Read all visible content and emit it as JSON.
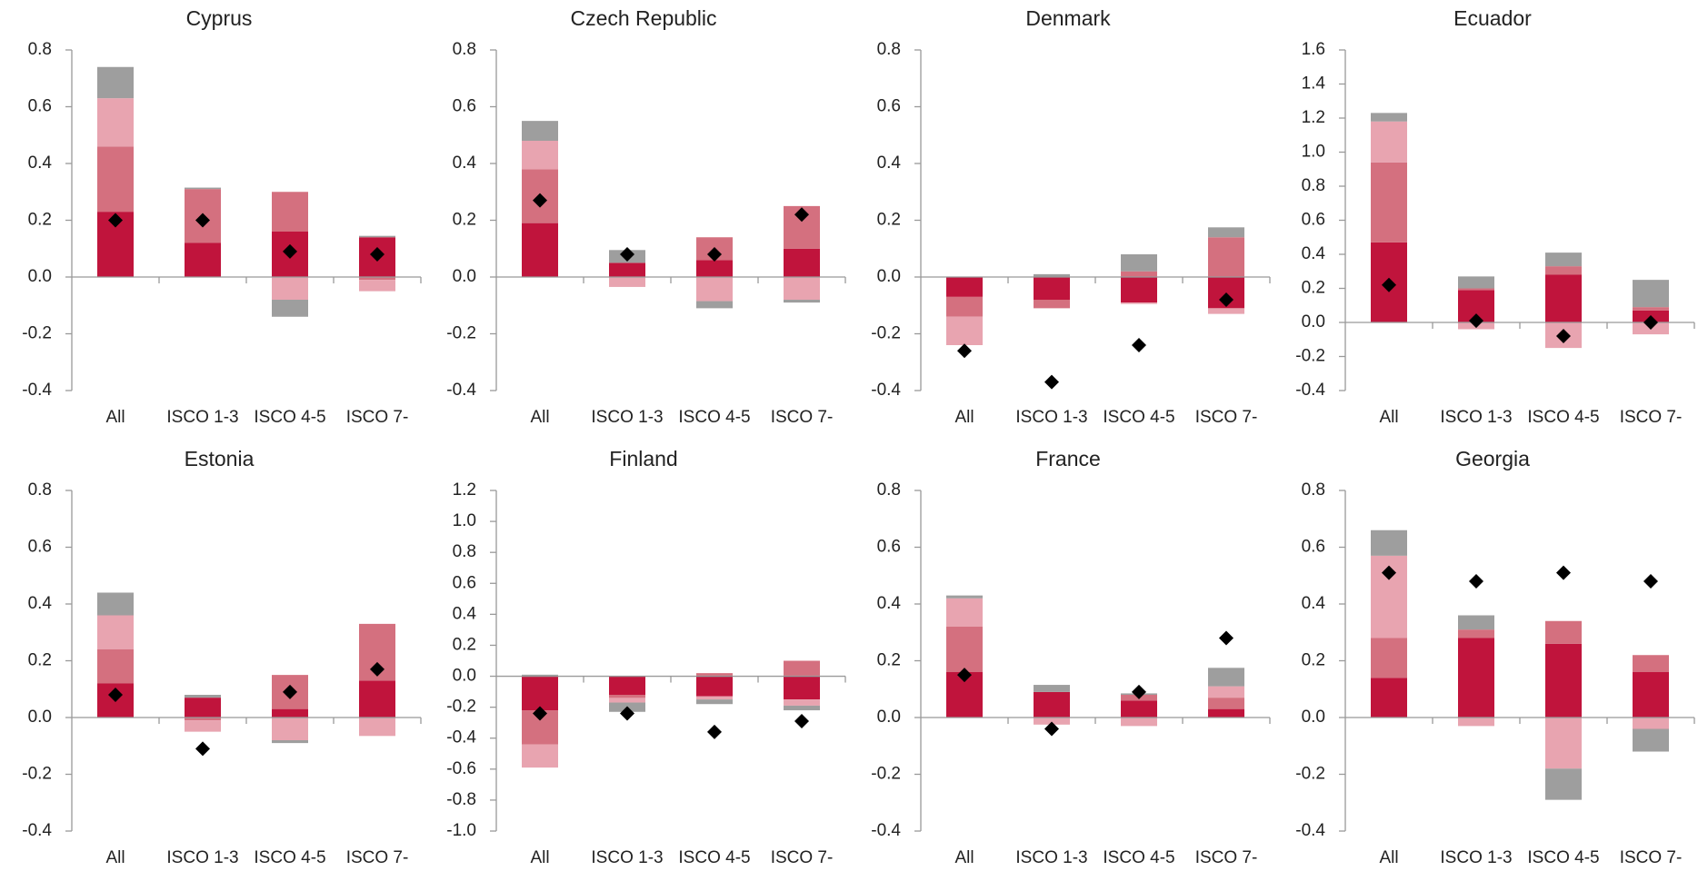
{
  "chart_data": [
    {
      "type": "bar",
      "title": "Cyprus",
      "categories": [
        "All",
        "ISCO 1-3",
        "ISCO 4-5",
        "ISCO 7-"
      ],
      "ylim": [
        -0.4,
        0.8
      ],
      "yticks": [
        -0.4,
        -0.2,
        {
          "value": 0,
          "label": "0.0"
        },
        0.2,
        0.4,
        0.6,
        0.8
      ],
      "series": [
        {
          "color": "#c0143c",
          "values": [
            0.23,
            0.12,
            0.16,
            0.14
          ]
        },
        {
          "color": "#d4707f",
          "values": [
            0.23,
            0.19,
            0.14,
            -0.01
          ]
        },
        {
          "color": "#e8a4b0",
          "values": [
            0.17,
            0,
            -0.08,
            -0.04
          ]
        },
        {
          "color": "#9e9e9e",
          "values": [
            0.11,
            0.005,
            -0.06,
            0.005
          ]
        }
      ],
      "markers": {
        "color": "#000000",
        "values": [
          0.2,
          0.2,
          0.09,
          0.08
        ]
      }
    },
    {
      "type": "bar",
      "title": "Czech Republic",
      "categories": [
        "All",
        "ISCO 1-3",
        "ISCO 4-5",
        "ISCO 7-"
      ],
      "ylim": [
        -0.4,
        0.8
      ],
      "yticks": [
        -0.4,
        -0.2,
        {
          "value": 0,
          "label": "0.0"
        },
        0.2,
        0.4,
        0.6,
        0.8
      ],
      "series": [
        {
          "color": "#c0143c",
          "values": [
            0.19,
            0.05,
            0.06,
            0.1
          ]
        },
        {
          "color": "#d4707f",
          "values": [
            0.19,
            0,
            0.08,
            0.15
          ]
        },
        {
          "color": "#e8a4b0",
          "values": [
            0.1,
            -0.035,
            -0.085,
            -0.08
          ]
        },
        {
          "color": "#9e9e9e",
          "values": [
            0.07,
            0.045,
            -0.025,
            -0.01
          ]
        }
      ],
      "markers": {
        "color": "#000000",
        "values": [
          0.27,
          0.08,
          0.08,
          0.22
        ]
      }
    },
    {
      "type": "bar",
      "title": "Denmark",
      "categories": [
        "All",
        "ISCO 1-3",
        "ISCO 4-5",
        "ISCO 7-"
      ],
      "ylim": [
        -0.4,
        0.8
      ],
      "yticks": [
        -0.4,
        -0.2,
        {
          "value": 0,
          "label": "0.0"
        },
        0.2,
        0.4,
        0.6,
        0.8
      ],
      "series": [
        {
          "color": "#c0143c",
          "values": [
            -0.07,
            -0.08,
            -0.09,
            -0.11
          ]
        },
        {
          "color": "#d4707f",
          "values": [
            -0.07,
            -0.03,
            0.02,
            0.14
          ]
        },
        {
          "color": "#e8a4b0",
          "values": [
            -0.1,
            0,
            -0.005,
            -0.02
          ]
        },
        {
          "color": "#9e9e9e",
          "values": [
            0,
            0.01,
            0.06,
            0.035
          ]
        }
      ],
      "markers": {
        "color": "#000000",
        "values": [
          -0.26,
          -0.37,
          -0.24,
          -0.08
        ]
      }
    },
    {
      "type": "bar",
      "title": "Ecuador",
      "categories": [
        "All",
        "ISCO 1-3",
        "ISCO 4-5",
        "ISCO 7-"
      ],
      "ylim": [
        -0.4,
        1.6
      ],
      "yticks": [
        -0.4,
        -0.2,
        {
          "value": 0,
          "label": "0.0"
        },
        0.2,
        0.4,
        0.6,
        0.8,
        {
          "value": 1,
          "label": "1.0"
        },
        1.2,
        1.4,
        1.6
      ],
      "series": [
        {
          "color": "#c0143c",
          "values": [
            0.47,
            0.19,
            0.28,
            0.07
          ]
        },
        {
          "color": "#d4707f",
          "values": [
            0.47,
            0.01,
            0.05,
            0.02
          ]
        },
        {
          "color": "#e8a4b0",
          "values": [
            0.24,
            -0.04,
            -0.15,
            -0.07
          ]
        },
        {
          "color": "#9e9e9e",
          "values": [
            0.05,
            0.07,
            0.08,
            0.16
          ]
        }
      ],
      "markers": {
        "color": "#000000",
        "values": [
          0.22,
          0.01,
          -0.08,
          0
        ]
      }
    },
    {
      "type": "bar",
      "title": "Estonia",
      "categories": [
        "All",
        "ISCO 1-3",
        "ISCO 4-5",
        "ISCO 7-"
      ],
      "ylim": [
        -0.4,
        0.8
      ],
      "yticks": [
        -0.4,
        -0.2,
        {
          "value": 0,
          "label": "0.0"
        },
        0.2,
        0.4,
        0.6,
        0.8
      ],
      "series": [
        {
          "color": "#c0143c",
          "values": [
            0.12,
            0.07,
            0.03,
            0.13
          ]
        },
        {
          "color": "#d4707f",
          "values": [
            0.12,
            -0.01,
            0.12,
            0.2
          ]
        },
        {
          "color": "#e8a4b0",
          "values": [
            0.12,
            -0.04,
            -0.08,
            -0.065
          ]
        },
        {
          "color": "#9e9e9e",
          "values": [
            0.08,
            0.01,
            -0.01,
            0
          ]
        }
      ],
      "markers": {
        "color": "#000000",
        "values": [
          0.08,
          -0.11,
          0.09,
          0.17
        ]
      }
    },
    {
      "type": "bar",
      "title": "Finland",
      "categories": [
        "All",
        "ISCO 1-3",
        "ISCO 4-5",
        "ISCO 7-"
      ],
      "ylim": [
        -1,
        1.2
      ],
      "yticks": [
        {
          "value": -1,
          "label": "-1.0"
        },
        -0.8,
        -0.6,
        -0.4,
        -0.2,
        {
          "value": 0,
          "label": "0.0"
        },
        0.2,
        0.4,
        0.6,
        0.8,
        {
          "value": 1,
          "label": "1.0"
        },
        1.2
      ],
      "series": [
        {
          "color": "#c0143c",
          "values": [
            -0.22,
            -0.12,
            -0.13,
            -0.15
          ]
        },
        {
          "color": "#d4707f",
          "values": [
            -0.22,
            -0.02,
            0.02,
            0.1
          ]
        },
        {
          "color": "#e8a4b0",
          "values": [
            -0.15,
            -0.03,
            -0.02,
            -0.04
          ]
        },
        {
          "color": "#9e9e9e",
          "values": [
            0.01,
            -0.06,
            -0.03,
            -0.03
          ]
        }
      ],
      "markers": {
        "color": "#000000",
        "values": [
          -0.24,
          -0.24,
          -0.36,
          -0.29
        ]
      }
    },
    {
      "type": "bar",
      "title": "France",
      "categories": [
        "All",
        "ISCO 1-3",
        "ISCO 4-5",
        "ISCO 7-"
      ],
      "ylim": [
        -0.4,
        0.8
      ],
      "yticks": [
        -0.4,
        -0.2,
        {
          "value": 0,
          "label": "0.0"
        },
        0.2,
        0.4,
        0.6,
        0.8
      ],
      "series": [
        {
          "color": "#c0143c",
          "values": [
            0.16,
            0.09,
            0.06,
            0.03
          ]
        },
        {
          "color": "#d4707f",
          "values": [
            0.16,
            0,
            0.02,
            0.04
          ]
        },
        {
          "color": "#e8a4b0",
          "values": [
            0.1,
            -0.025,
            -0.03,
            0.04
          ]
        },
        {
          "color": "#9e9e9e",
          "values": [
            0.01,
            0.025,
            0.005,
            0.065
          ]
        }
      ],
      "markers": {
        "color": "#000000",
        "values": [
          0.15,
          -0.04,
          0.09,
          0.28
        ]
      }
    },
    {
      "type": "bar",
      "title": "Georgia",
      "categories": [
        "All",
        "ISCO 1-3",
        "ISCO 4-5",
        "ISCO 7-"
      ],
      "ylim": [
        -0.4,
        0.8
      ],
      "yticks": [
        -0.4,
        -0.2,
        {
          "value": 0,
          "label": "0.0"
        },
        0.2,
        0.4,
        0.6,
        0.8
      ],
      "series": [
        {
          "color": "#c0143c",
          "values": [
            0.14,
            0.28,
            0.26,
            0.16
          ]
        },
        {
          "color": "#d4707f",
          "values": [
            0.14,
            0.03,
            0.08,
            0.06
          ]
        },
        {
          "color": "#e8a4b0",
          "values": [
            0.29,
            -0.03,
            -0.18,
            -0.04
          ]
        },
        {
          "color": "#9e9e9e",
          "values": [
            0.09,
            0.05,
            -0.11,
            -0.08
          ]
        }
      ],
      "markers": {
        "color": "#000000",
        "values": [
          0.51,
          0.48,
          0.51,
          0.48
        ]
      }
    }
  ]
}
